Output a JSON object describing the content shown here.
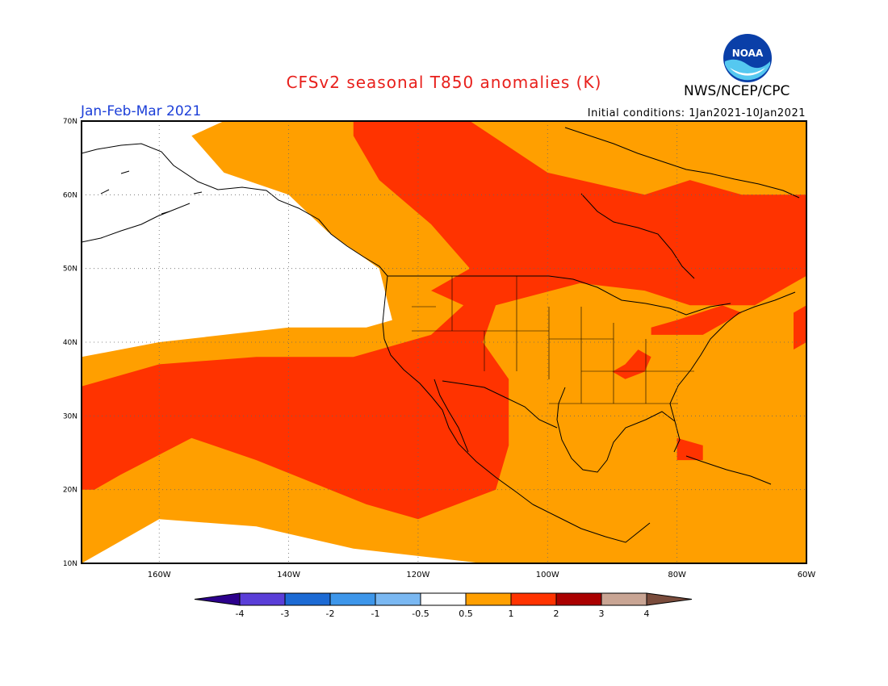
{
  "header": {
    "title": "CFSv2 seasonal T850 anomalies (K)",
    "season": "Jan-Feb-Mar 2021",
    "initial_conditions": "Initial conditions: 1Jan2021-10Jan2021",
    "agency": "NWS/NCEP/CPC",
    "logo_icon": "noaa-logo-icon",
    "logo_text": "NOAA"
  },
  "map": {
    "lon_range": [
      -172,
      -60
    ],
    "lat_range": [
      10,
      70
    ],
    "x_ticks": [
      {
        "value": -160,
        "label": "160W"
      },
      {
        "value": -140,
        "label": "140W"
      },
      {
        "value": -120,
        "label": "120W"
      },
      {
        "value": -100,
        "label": "100W"
      },
      {
        "value": -80,
        "label": "80W"
      },
      {
        "value": -60,
        "label": "60W"
      }
    ],
    "y_ticks": [
      {
        "value": 10,
        "label": "10N"
      },
      {
        "value": 20,
        "label": "20N"
      },
      {
        "value": 30,
        "label": "30N"
      },
      {
        "value": 40,
        "label": "40N"
      },
      {
        "value": 50,
        "label": "50N"
      },
      {
        "value": 60,
        "label": "60N"
      },
      {
        "value": 70,
        "label": "70N"
      }
    ],
    "grid": "dotted",
    "anomaly_regions": [
      {
        "level": "0.5-1",
        "color": "#ff9f00",
        "lonlat": [
          [
            -172,
            10
          ],
          [
            -172,
            38
          ],
          [
            -160,
            40
          ],
          [
            -150,
            41
          ],
          [
            -140,
            42
          ],
          [
            -128,
            42
          ],
          [
            -124,
            43
          ],
          [
            -126,
            50
          ],
          [
            -134,
            55
          ],
          [
            -140,
            60
          ],
          [
            -150,
            63
          ],
          [
            -155,
            68
          ],
          [
            -150,
            70
          ],
          [
            -60,
            70
          ],
          [
            -60,
            10
          ],
          [
            -110,
            10
          ],
          [
            -130,
            12
          ],
          [
            -145,
            15
          ],
          [
            -160,
            16
          ]
        ]
      },
      {
        "level": "1-2",
        "color": "#ff3300",
        "lonlat": [
          [
            -172,
            20
          ],
          [
            -172,
            34
          ],
          [
            -160,
            37
          ],
          [
            -145,
            38
          ],
          [
            -130,
            38
          ],
          [
            -118,
            41
          ],
          [
            -113,
            45
          ],
          [
            -118,
            47
          ],
          [
            -112,
            50
          ],
          [
            -118,
            56
          ],
          [
            -126,
            62
          ],
          [
            -130,
            68
          ],
          [
            -130,
            70
          ],
          [
            -112,
            70
          ],
          [
            -100,
            63
          ],
          [
            -85,
            60
          ],
          [
            -78,
            62
          ],
          [
            -70,
            60
          ],
          [
            -60,
            60
          ],
          [
            -60,
            49
          ],
          [
            -68,
            45
          ],
          [
            -78,
            45
          ],
          [
            -85,
            47
          ],
          [
            -95,
            48
          ],
          [
            -108,
            45
          ],
          [
            -110,
            40
          ],
          [
            -106,
            35
          ],
          [
            -106,
            26
          ],
          [
            -108,
            20
          ],
          [
            -120,
            16
          ],
          [
            -128,
            18
          ],
          [
            -145,
            24
          ],
          [
            -155,
            27
          ],
          [
            -166,
            22
          ],
          [
            -170,
            20
          ]
        ]
      },
      {
        "level": "1-2",
        "color": "#ff3300",
        "lonlat": [
          [
            -88,
            37
          ],
          [
            -90,
            36
          ],
          [
            -88,
            35
          ],
          [
            -85,
            36
          ],
          [
            -84,
            38
          ],
          [
            -86,
            39
          ]
        ]
      },
      {
        "level": "1-2",
        "color": "#ff3300",
        "lonlat": [
          [
            -84,
            41
          ],
          [
            -76,
            41
          ],
          [
            -70,
            44
          ],
          [
            -73,
            45
          ],
          [
            -80,
            43
          ],
          [
            -84,
            42
          ]
        ]
      },
      {
        "level": "1-2",
        "color": "#ff3300",
        "lonlat": [
          [
            -80,
            27
          ],
          [
            -76,
            26
          ],
          [
            -76,
            24
          ],
          [
            -80,
            24
          ]
        ]
      },
      {
        "level": "1-2",
        "color": "#ff3300",
        "lonlat": [
          [
            -60,
            40
          ],
          [
            -62,
            39
          ],
          [
            -62,
            44
          ],
          [
            -60,
            45
          ]
        ]
      }
    ]
  },
  "legend": {
    "colors": [
      "#2c008c",
      "#5a3ed8",
      "#1c6ad4",
      "#3d96ea",
      "#7ab8f2",
      "#ffffff",
      "#ff9f00",
      "#ff3300",
      "#aa0000",
      "#c9a594",
      "#7a4c3c"
    ],
    "labels": [
      "-4",
      "-3",
      "-2",
      "-1",
      "-0.5",
      "0.5",
      "1",
      "2",
      "3",
      "4"
    ]
  }
}
